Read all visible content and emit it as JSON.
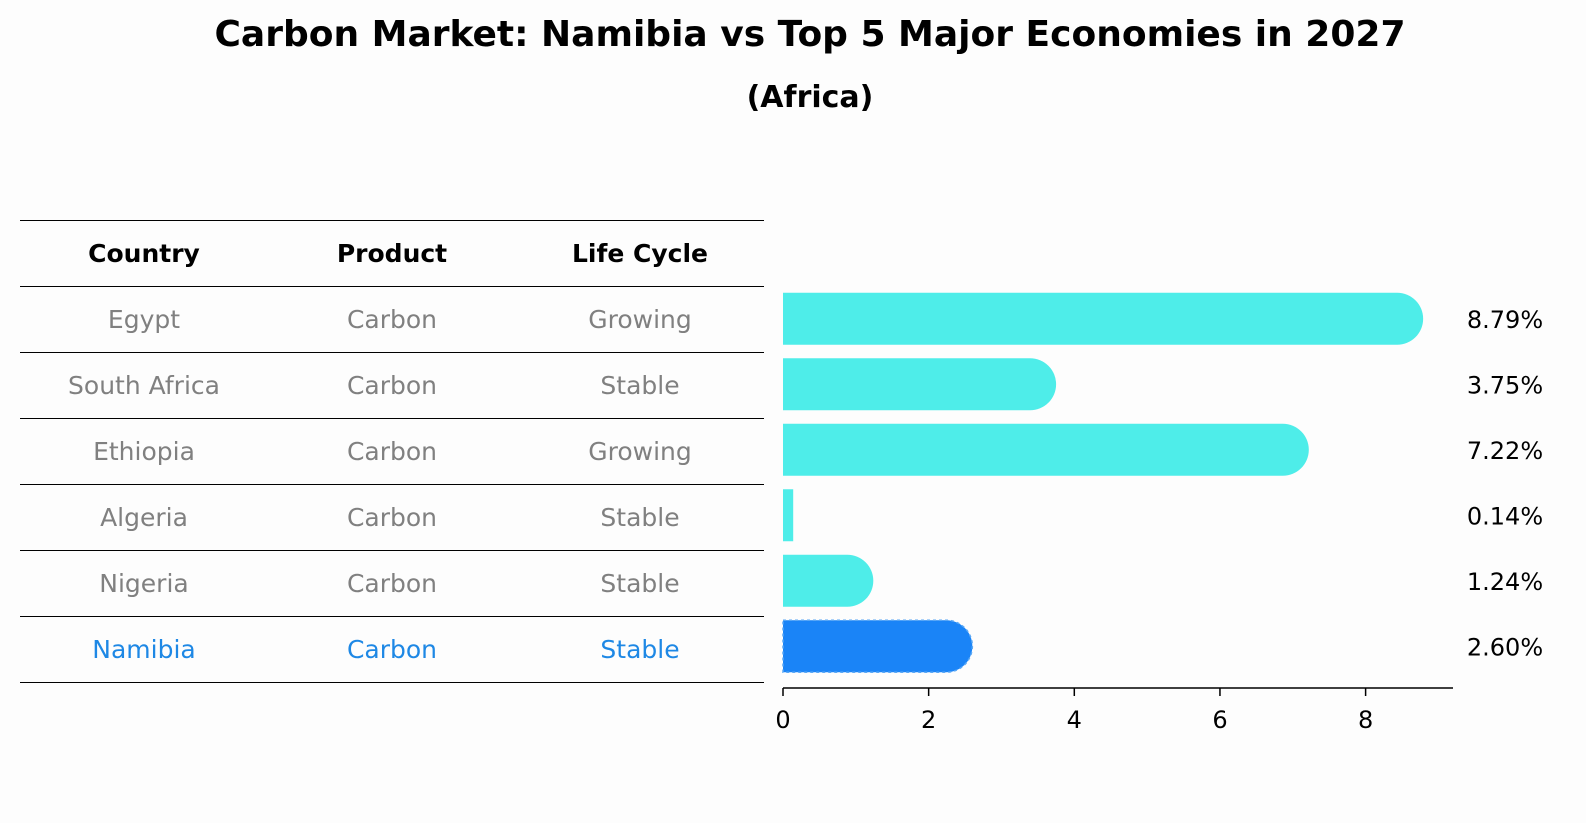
{
  "title": "Carbon Market: Namibia vs Top 5 Major Economies in 2027",
  "subtitle": "(Africa)",
  "table": {
    "headers": [
      "Country",
      "Product",
      "Life Cycle"
    ],
    "rows": [
      [
        "Egypt",
        "Carbon",
        "Growing"
      ],
      [
        "South Africa",
        "Carbon",
        "Stable"
      ],
      [
        "Ethiopia",
        "Carbon",
        "Growing"
      ],
      [
        "Algeria",
        "Carbon",
        "Stable"
      ],
      [
        "Nigeria",
        "Carbon",
        "Stable"
      ],
      [
        "Namibia",
        "Carbon",
        "Stable"
      ]
    ],
    "highlight_row": 5
  },
  "colors": {
    "bar": "#4eede9",
    "highlight_bar": "#1a84f7",
    "highlight_text": "#1e88e5",
    "muted_text": "#808080"
  },
  "chart_data": {
    "type": "bar",
    "orientation": "horizontal",
    "categories": [
      "Egypt",
      "South Africa",
      "Ethiopia",
      "Algeria",
      "Nigeria",
      "Namibia"
    ],
    "values": [
      8.79,
      3.75,
      7.22,
      0.14,
      1.24,
      2.6
    ],
    "value_labels": [
      "8.79%",
      "3.75%",
      "7.22%",
      "0.14%",
      "1.24%",
      "2.60%"
    ],
    "highlight_category": "Namibia",
    "xlim": [
      0,
      9.2
    ],
    "xticks": [
      0,
      2,
      4,
      6,
      8
    ],
    "grid": false
  }
}
